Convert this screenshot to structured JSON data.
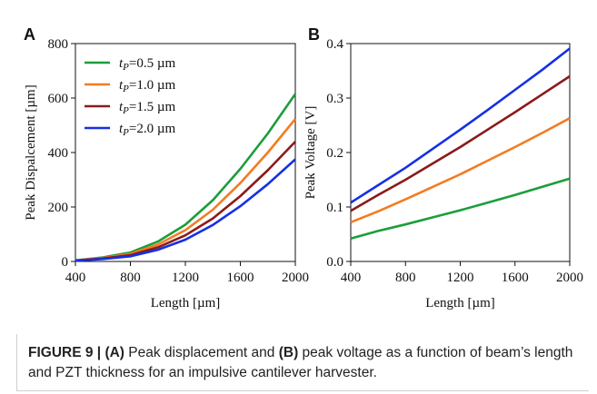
{
  "caption": {
    "label": "FIGURE 9 | ",
    "a_tag": "(A)",
    "a_text": " Peak displacement and ",
    "b_tag": "(B)",
    "b_text": " peak voltage as a function of beam’s length and PZT thickness for an impulsive cantilever harvester."
  },
  "colors": {
    "green": "#1a9e3b",
    "orange": "#f47b20",
    "darkred": "#8b1a1a",
    "blue": "#1430e6"
  },
  "chart_data": [
    {
      "panel": "A",
      "type": "line",
      "xlabel": "Length [µm]",
      "ylabel": "Peak Dispalcement [µm]",
      "xlim": [
        400,
        2000
      ],
      "ylim": [
        0,
        800
      ],
      "xticks": [
        400,
        800,
        1200,
        1600,
        2000
      ],
      "yticks": [
        0,
        200,
        400,
        600,
        800
      ],
      "xtick_labels": [
        "400",
        "800",
        "1200",
        "1600",
        "2000"
      ],
      "ytick_labels": [
        "0",
        "200",
        "400",
        "600",
        "800"
      ],
      "grid": false,
      "legend_position": "top-left",
      "x": [
        400,
        600,
        800,
        1000,
        1200,
        1400,
        1600,
        1800,
        2000
      ],
      "series": [
        {
          "name": "t_P=0.5 µm",
          "sub": "P",
          "pre": "t",
          "post": "=0.5 µm",
          "color": "#1a9e3b",
          "values": [
            4,
            15,
            33,
            73,
            135,
            225,
            340,
            470,
            615
          ]
        },
        {
          "name": "t_P=1.0 µm",
          "sub": "P",
          "pre": "t",
          "post": "=1.0 µm",
          "color": "#f47b20",
          "values": [
            4,
            13,
            28,
            62,
            115,
            190,
            288,
            400,
            523
          ]
        },
        {
          "name": "t_P=1.5 µm",
          "sub": "P",
          "pre": "t",
          "post": "=1.5 µm",
          "color": "#8b1a1a",
          "values": [
            3,
            11,
            23,
            52,
            96,
            158,
            240,
            335,
            440
          ]
        },
        {
          "name": "t_P=2.0 µm",
          "sub": "P",
          "pre": "t",
          "post": "=2.0 µm",
          "color": "#1430e6",
          "values": [
            3,
            9,
            19,
            43,
            80,
            134,
            203,
            284,
            375
          ]
        }
      ]
    },
    {
      "panel": "B",
      "type": "line",
      "xlabel": "Length [µm]",
      "ylabel": "Peak Voltage [V]",
      "xlim": [
        400,
        2000
      ],
      "ylim": [
        0,
        0.4
      ],
      "xticks": [
        400,
        800,
        1200,
        1600,
        2000
      ],
      "yticks": [
        0,
        0.1,
        0.2,
        0.3,
        0.4
      ],
      "xtick_labels": [
        "400",
        "800",
        "1200",
        "1600",
        "2000"
      ],
      "ytick_labels": [
        "0.0",
        "0.1",
        "0.2",
        "0.3",
        "0.4"
      ],
      "grid": false,
      "x": [
        400,
        600,
        800,
        1000,
        1200,
        1400,
        1600,
        1800,
        2000
      ],
      "series": [
        {
          "color": "#1a9e3b",
          "values": [
            0.042,
            0.056,
            0.068,
            0.081,
            0.094,
            0.108,
            0.122,
            0.137,
            0.152
          ]
        },
        {
          "color": "#f47b20",
          "values": [
            0.072,
            0.092,
            0.114,
            0.137,
            0.16,
            0.185,
            0.21,
            0.236,
            0.263
          ]
        },
        {
          "color": "#8b1a1a",
          "values": [
            0.093,
            0.122,
            0.15,
            0.18,
            0.21,
            0.242,
            0.274,
            0.307,
            0.34
          ]
        },
        {
          "color": "#1430e6",
          "values": [
            0.108,
            0.14,
            0.172,
            0.207,
            0.242,
            0.278,
            0.315,
            0.352,
            0.391
          ]
        }
      ]
    }
  ]
}
